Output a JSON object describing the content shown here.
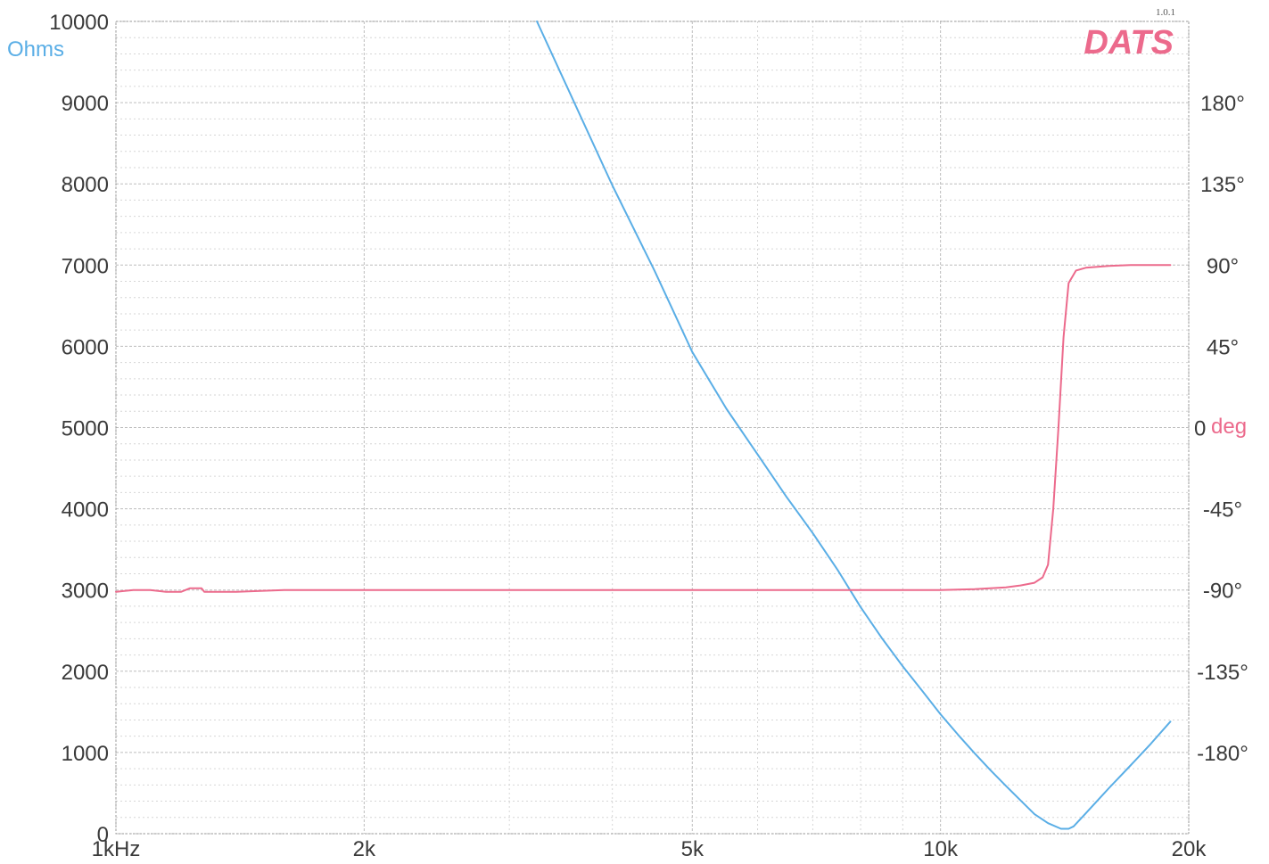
{
  "brand": {
    "logo": "DATS",
    "version": "1.0.1"
  },
  "colors": {
    "impedance": "#5aaee6",
    "phase": "#ec6a8c",
    "grid_major": "#bdbdbd",
    "grid_minor": "#d6d6d6",
    "text": "#3a3a3a"
  },
  "chart_data": {
    "type": "line",
    "x_scale": "log",
    "x_range": [
      1000,
      20000
    ],
    "x_ticks": [
      {
        "value": 1000,
        "label": "1kHz"
      },
      {
        "value": 2000,
        "label": "2k"
      },
      {
        "value": 5000,
        "label": "5k"
      },
      {
        "value": 10000,
        "label": "10k"
      },
      {
        "value": 20000,
        "label": "20k"
      }
    ],
    "y_left": {
      "unit_label": "Ohms",
      "range": [
        0,
        10000
      ],
      "ticks": [
        {
          "value": 0,
          "label": "0"
        },
        {
          "value": 1000,
          "label": "1000"
        },
        {
          "value": 2000,
          "label": "2000"
        },
        {
          "value": 3000,
          "label": "3000"
        },
        {
          "value": 4000,
          "label": "4000"
        },
        {
          "value": 5000,
          "label": "5000"
        },
        {
          "value": 6000,
          "label": "6000"
        },
        {
          "value": 7000,
          "label": "7000"
        },
        {
          "value": 8000,
          "label": "8000"
        },
        {
          "value": 9000,
          "label": "9000"
        },
        {
          "value": 10000,
          "label": "10000"
        }
      ]
    },
    "y_right": {
      "unit_label": "deg",
      "range": [
        -225,
        225
      ],
      "ticks": [
        {
          "value": 180,
          "label": "180°"
        },
        {
          "value": 135,
          "label": "135°"
        },
        {
          "value": 90,
          "label": "90°"
        },
        {
          "value": 45,
          "label": "45°"
        },
        {
          "value": 0,
          "label": "0"
        },
        {
          "value": -45,
          "label": "-45°"
        },
        {
          "value": -90,
          "label": "-90°"
        },
        {
          "value": -135,
          "label": "-135°"
        },
        {
          "value": -180,
          "label": "-180°"
        }
      ]
    },
    "grid": true,
    "series": [
      {
        "axis": "left",
        "color": "#5aaee6",
        "x": [
          3240,
          3500,
          4000,
          4500,
          5000,
          5500,
          6000,
          6500,
          7000,
          7500,
          8000,
          8500,
          9000,
          9500,
          10000,
          10500,
          11000,
          11500,
          12000,
          12500,
          13000,
          13500,
          14000,
          14300,
          14500,
          15000,
          16000,
          17000,
          18000,
          19000
        ],
        "y": [
          10000,
          9260,
          7980,
          6930,
          5930,
          5230,
          4670,
          4150,
          3700,
          3250,
          2790,
          2400,
          2060,
          1760,
          1470,
          1220,
          990,
          780,
          590,
          410,
          240,
          130,
          60,
          60,
          90,
          250,
          560,
          840,
          1110,
          1380
        ]
      },
      {
        "axis": "right",
        "color": "#ec6a8c",
        "x": [
          1000,
          1050,
          1100,
          1150,
          1180,
          1200,
          1230,
          1250,
          1270,
          1280,
          1300,
          1400,
          1600,
          2000,
          3000,
          5000,
          8000,
          10000,
          11000,
          12000,
          12500,
          13000,
          13300,
          13500,
          13700,
          13900,
          14100,
          14300,
          14600,
          15000,
          16000,
          17000,
          18000,
          19000
        ],
        "y": [
          -91,
          -90,
          -90,
          -91,
          -91,
          -91,
          -89,
          -89,
          -89,
          -91,
          -91,
          -91,
          -90,
          -90,
          -90,
          -90,
          -90,
          -90,
          -89.5,
          -88.5,
          -87.5,
          -86,
          -83,
          -76,
          -45,
          0,
          50,
          80,
          87,
          88.5,
          89.5,
          90,
          90,
          90
        ]
      }
    ]
  }
}
